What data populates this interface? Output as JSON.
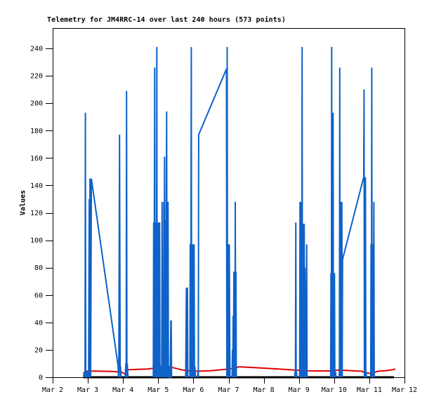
{
  "figure": {
    "background": "#ffffff",
    "border_color": "#000000",
    "text_color": "#000000"
  },
  "chart_data": {
    "type": "line",
    "title": "Telemetry for JM4RRC-14 over last 240 hours (573 points)",
    "ylabel": "Values",
    "xlabel": "",
    "grid": false,
    "legend": "none",
    "ylim": [
      0,
      240
    ],
    "xlim_days": [
      2,
      12
    ],
    "yticks": [
      0,
      20,
      40,
      60,
      80,
      100,
      120,
      140,
      160,
      180,
      200,
      220,
      240
    ],
    "xticks": [
      {
        "day": 2,
        "label": "Mar 2"
      },
      {
        "day": 3,
        "label": "Mar 3"
      },
      {
        "day": 4,
        "label": "Mar 4"
      },
      {
        "day": 5,
        "label": "Mar 5"
      },
      {
        "day": 6,
        "label": "Mar 6"
      },
      {
        "day": 7,
        "label": "Mar 7"
      },
      {
        "day": 8,
        "label": "Mar 8"
      },
      {
        "day": 9,
        "label": "Mar 9"
      },
      {
        "day": 10,
        "label": "Mar 10"
      },
      {
        "day": 11,
        "label": "Mar 11"
      },
      {
        "day": 12,
        "label": "Mar 12"
      }
    ],
    "series": [
      {
        "id": "series-3-black",
        "color": "#000000",
        "width": 3,
        "segments": [
          [
            [
              2.88,
              0
            ],
            [
              11.7,
              0
            ]
          ]
        ]
      },
      {
        "id": "series-2-red",
        "color": "#e10000",
        "width": 2,
        "segments": [
          [
            [
              2.9,
              4.5
            ],
            [
              3.3,
              4.5
            ],
            [
              3.7,
              4.2
            ],
            [
              3.95,
              3.8
            ],
            [
              4.05,
              2.5
            ],
            [
              4.15,
              5.5
            ],
            [
              4.4,
              5.8
            ],
            [
              4.7,
              6.0
            ],
            [
              4.86,
              6.5
            ],
            [
              5.06,
              8.0
            ],
            [
              5.28,
              8.0
            ],
            [
              5.45,
              6.8
            ],
            [
              5.7,
              5.2
            ],
            [
              5.9,
              4.6
            ],
            [
              6.2,
              4.5
            ],
            [
              6.5,
              4.8
            ],
            [
              6.8,
              5.5
            ],
            [
              7.0,
              6.0
            ],
            [
              7.2,
              6.8
            ],
            [
              7.3,
              7.6
            ],
            [
              7.55,
              7.3
            ],
            [
              7.9,
              6.8
            ],
            [
              8.3,
              6.2
            ],
            [
              8.7,
              5.6
            ],
            [
              9.0,
              5.0
            ],
            [
              9.2,
              4.7
            ],
            [
              9.6,
              4.6
            ],
            [
              9.9,
              4.6
            ],
            [
              10.1,
              5.2
            ],
            [
              10.35,
              5.0
            ],
            [
              10.6,
              4.6
            ],
            [
              10.8,
              4.4
            ],
            [
              10.88,
              2.8
            ],
            [
              10.96,
              3.2
            ],
            [
              11.02,
              2.6
            ],
            [
              11.08,
              4.0
            ],
            [
              11.15,
              3.6
            ],
            [
              11.25,
              4.4
            ],
            [
              11.45,
              4.8
            ],
            [
              11.6,
              5.2
            ],
            [
              11.74,
              6.0
            ]
          ]
        ]
      },
      {
        "id": "series-1-blue",
        "color": "#0f62c8",
        "width": 2,
        "segments": [
          [
            [
              2.88,
              0
            ],
            [
              2.89,
              4
            ],
            [
              2.9,
              0
            ],
            [
              2.91,
              4
            ],
            [
              2.92,
              0
            ],
            [
              2.93,
              193
            ],
            [
              2.94,
              0
            ],
            [
              2.95,
              4
            ],
            [
              2.96,
              0
            ],
            [
              2.97,
              4
            ],
            [
              2.98,
              0
            ],
            [
              3.0,
              4
            ],
            [
              3.02,
              0
            ],
            [
              3.04,
              130
            ],
            [
              3.05,
              0
            ],
            [
              3.06,
              145
            ],
            [
              3.07,
              130
            ],
            [
              3.08,
              0
            ],
            [
              3.1,
              145
            ],
            [
              3.86,
              8
            ],
            [
              3.87,
              0
            ],
            [
              3.88,
              8
            ],
            [
              3.9,
              177
            ],
            [
              3.92,
              0
            ],
            [
              3.93,
              8
            ],
            [
              3.94,
              0
            ]
          ],
          [
            [
              4.06,
              0
            ],
            [
              4.08,
              10
            ],
            [
              4.09,
              0
            ],
            [
              4.1,
              209
            ],
            [
              4.11,
              0
            ],
            [
              4.12,
              10
            ],
            [
              4.14,
              0
            ]
          ],
          [
            [
              4.86,
              0
            ],
            [
              4.87,
              113
            ],
            [
              4.88,
              0
            ],
            [
              4.89,
              113
            ],
            [
              4.9,
              226
            ],
            [
              4.91,
              0
            ],
            [
              4.92,
              113
            ],
            [
              4.93,
              0
            ],
            [
              4.94,
              113
            ],
            [
              4.95,
              0
            ],
            [
              4.96,
              241
            ],
            [
              4.97,
              0
            ],
            [
              4.98,
              113
            ],
            [
              4.99,
              0
            ],
            [
              5.0,
              113
            ],
            [
              5.01,
              0
            ],
            [
              5.02,
              113
            ],
            [
              5.03,
              0
            ],
            [
              5.04,
              113
            ],
            [
              5.05,
              0
            ],
            [
              5.06,
              8
            ],
            [
              5.07,
              0
            ]
          ],
          [
            [
              5.1,
              0
            ],
            [
              5.11,
              128
            ],
            [
              5.12,
              0
            ],
            [
              5.13,
              20
            ],
            [
              5.14,
              45
            ],
            [
              5.15,
              0
            ],
            [
              5.16,
              128
            ],
            [
              5.17,
              0
            ],
            [
              5.18,
              161
            ],
            [
              5.19,
              0
            ],
            [
              5.2,
              97
            ],
            [
              5.21,
              115
            ],
            [
              5.22,
              0
            ],
            [
              5.23,
              128
            ],
            [
              5.24,
              194
            ],
            [
              5.25,
              0
            ],
            [
              5.26,
              128
            ],
            [
              5.27,
              0
            ],
            [
              5.28,
              128
            ],
            [
              5.29,
              0
            ],
            [
              5.3,
              8
            ],
            [
              5.32,
              0
            ],
            [
              5.34,
              0
            ],
            [
              5.36,
              41
            ],
            [
              5.37,
              41
            ],
            [
              5.38,
              0
            ]
          ],
          [
            [
              5.78,
              0
            ],
            [
              5.8,
              65
            ],
            [
              5.81,
              0
            ],
            [
              5.82,
              65
            ],
            [
              5.83,
              65
            ],
            [
              5.84,
              0
            ]
          ],
          [
            [
              5.9,
              0
            ],
            [
              5.91,
              97
            ],
            [
              5.92,
              0
            ],
            [
              5.93,
              97
            ],
            [
              5.94,
              241
            ],
            [
              5.95,
              0
            ],
            [
              5.96,
              97
            ],
            [
              5.97,
              0
            ],
            [
              5.98,
              97
            ],
            [
              5.99,
              0
            ],
            [
              6.0,
              97
            ],
            [
              6.01,
              0
            ],
            [
              6.02,
              97
            ],
            [
              6.03,
              0
            ],
            [
              6.04,
              8
            ],
            [
              6.06,
              0
            ]
          ],
          [
            [
              6.12,
              0
            ],
            [
              6.13,
              4
            ],
            [
              6.14,
              0
            ],
            [
              6.15,
              177
            ],
            [
              6.94,
              225
            ],
            [
              6.95,
              0
            ],
            [
              6.96,
              241
            ],
            [
              6.97,
              0
            ],
            [
              6.98,
              97
            ],
            [
              6.99,
              0
            ],
            [
              7.0,
              97
            ],
            [
              7.01,
              0
            ],
            [
              7.02,
              97
            ],
            [
              7.03,
              43
            ],
            [
              7.04,
              0
            ]
          ],
          [
            [
              7.1,
              0
            ],
            [
              7.11,
              20
            ],
            [
              7.12,
              0
            ],
            [
              7.13,
              45
            ],
            [
              7.14,
              0
            ],
            [
              7.15,
              77
            ],
            [
              7.16,
              0
            ],
            [
              7.17,
              77
            ],
            [
              7.18,
              0
            ],
            [
              7.19,
              128
            ],
            [
              7.2,
              0
            ],
            [
              7.21,
              77
            ],
            [
              7.22,
              0
            ]
          ],
          [
            [
              8.88,
              0
            ],
            [
              8.89,
              4
            ],
            [
              8.9,
              0
            ],
            [
              8.91,
              113
            ],
            [
              8.92,
              0
            ],
            [
              8.93,
              4
            ],
            [
              8.94,
              0
            ]
          ],
          [
            [
              9.02,
              0
            ],
            [
              9.03,
              128
            ],
            [
              9.04,
              0
            ],
            [
              9.05,
              128
            ],
            [
              9.06,
              0
            ],
            [
              9.07,
              128
            ],
            [
              9.08,
              0
            ],
            [
              9.09,
              241
            ],
            [
              9.1,
              0
            ],
            [
              9.11,
              112
            ],
            [
              9.12,
              0
            ],
            [
              9.13,
              112
            ],
            [
              9.14,
              0
            ],
            [
              9.15,
              112
            ],
            [
              9.16,
              0
            ],
            [
              9.17,
              80
            ],
            [
              9.18,
              0
            ],
            [
              9.19,
              4
            ],
            [
              9.2,
              0
            ],
            [
              9.22,
              97
            ],
            [
              9.23,
              0
            ]
          ],
          [
            [
              9.9,
              0
            ],
            [
              9.91,
              76
            ],
            [
              9.92,
              0
            ],
            [
              9.93,
              241
            ],
            [
              9.94,
              0
            ],
            [
              9.95,
              193
            ],
            [
              9.96,
              0
            ],
            [
              9.97,
              193
            ],
            [
              9.98,
              0
            ],
            [
              9.99,
              76
            ],
            [
              10.0,
              0
            ],
            [
              10.01,
              76
            ],
            [
              10.02,
              0
            ],
            [
              10.04,
              4
            ],
            [
              10.05,
              0
            ]
          ],
          [
            [
              10.14,
              0
            ],
            [
              10.15,
              4
            ],
            [
              10.16,
              226
            ],
            [
              10.17,
              0
            ],
            [
              10.18,
              128
            ],
            [
              10.19,
              0
            ],
            [
              10.2,
              128
            ],
            [
              10.21,
              0
            ],
            [
              10.22,
              128
            ],
            [
              10.23,
              0
            ],
            [
              10.24,
              86
            ],
            [
              10.84,
              146
            ],
            [
              10.85,
              210
            ],
            [
              10.86,
              0
            ],
            [
              10.87,
              146
            ],
            [
              10.88,
              0
            ],
            [
              10.89,
              146
            ],
            [
              10.9,
              0
            ],
            [
              10.91,
              4
            ],
            [
              10.92,
              0
            ]
          ],
          [
            [
              11.04,
              0
            ],
            [
              11.05,
              97
            ],
            [
              11.06,
              0
            ],
            [
              11.07,
              226
            ],
            [
              11.08,
              0
            ],
            [
              11.09,
              97
            ],
            [
              11.1,
              0
            ],
            [
              11.11,
              97
            ],
            [
              11.12,
              0
            ],
            [
              11.13,
              128
            ],
            [
              11.14,
              0
            ]
          ]
        ]
      }
    ]
  }
}
